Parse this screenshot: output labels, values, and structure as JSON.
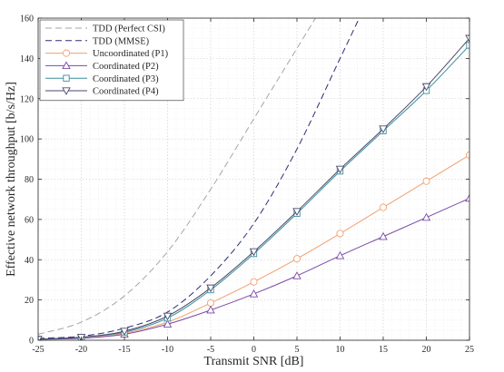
{
  "chart_data": {
    "type": "line",
    "xlabel": "Transmit SNR [dB]",
    "ylabel": "Effective network throughput [b/s/Hz]",
    "xlim": [
      -25,
      25
    ],
    "ylim": [
      0,
      160
    ],
    "xticks": [
      -25,
      -20,
      -15,
      -10,
      -5,
      0,
      5,
      10,
      15,
      20,
      25
    ],
    "yticks": [
      0,
      20,
      40,
      60,
      80,
      100,
      120,
      140,
      160
    ],
    "x_tick_labels": [
      "-25",
      "-20",
      "-15",
      "-10",
      "-5",
      "0",
      "5",
      "10",
      "15",
      "20",
      "25"
    ],
    "y_tick_labels": [
      "0",
      "20",
      "40",
      "60",
      "80",
      "100",
      "120",
      "140",
      "160"
    ],
    "grid": true,
    "legend_position": "top-left",
    "series": [
      {
        "name": "TDD (Perfect CSI)",
        "color": "#a6a6a6",
        "style": "dashed",
        "marker": "none",
        "x": [
          -25,
          -20,
          -15,
          -10,
          -5,
          0,
          5,
          10
        ],
        "y": [
          3,
          9,
          22,
          44,
          75,
          110,
          145,
          180
        ]
      },
      {
        "name": "TDD (MMSE)",
        "color": "#2e2e7a",
        "style": "dashed",
        "marker": "none",
        "x": [
          -25,
          -20,
          -15,
          -10,
          -5,
          0,
          5,
          10,
          15
        ],
        "y": [
          1,
          2,
          6,
          14,
          32,
          58,
          95,
          140,
          185
        ]
      },
      {
        "name": "Uncoordinated (P1)",
        "color": "#f0a070",
        "style": "solid",
        "marker": "circle",
        "x": [
          -25,
          -20,
          -15,
          -10,
          -5,
          0,
          5,
          10,
          15,
          20,
          25
        ],
        "y": [
          0.5,
          1,
          3.5,
          9,
          18.5,
          29,
          40.5,
          53,
          66,
          79,
          92
        ]
      },
      {
        "name": "Coordinated (P2)",
        "color": "#7a4aa8",
        "style": "solid",
        "marker": "triangle-up",
        "x": [
          -25,
          -20,
          -15,
          -10,
          -5,
          0,
          5,
          10,
          15,
          20,
          25
        ],
        "y": [
          0.5,
          1,
          3,
          8,
          15,
          23,
          32,
          42,
          51.5,
          61,
          70.5
        ]
      },
      {
        "name": "Coordinated (P3)",
        "color": "#3a8e9e",
        "style": "solid",
        "marker": "square",
        "x": [
          -25,
          -20,
          -15,
          -10,
          -5,
          0,
          5,
          10,
          15,
          20,
          25
        ],
        "y": [
          0.5,
          1.5,
          4,
          11,
          25,
          43,
          63,
          84,
          104,
          124,
          146.5
        ]
      },
      {
        "name": "Coordinated (P4)",
        "color": "#4a4a6a",
        "style": "solid",
        "marker": "triangle-down",
        "x": [
          -25,
          -20,
          -15,
          -10,
          -5,
          0,
          5,
          10,
          15,
          20,
          25
        ],
        "y": [
          0.5,
          1.5,
          4.5,
          12,
          26,
          44,
          64,
          85,
          105,
          126,
          150
        ]
      }
    ]
  }
}
